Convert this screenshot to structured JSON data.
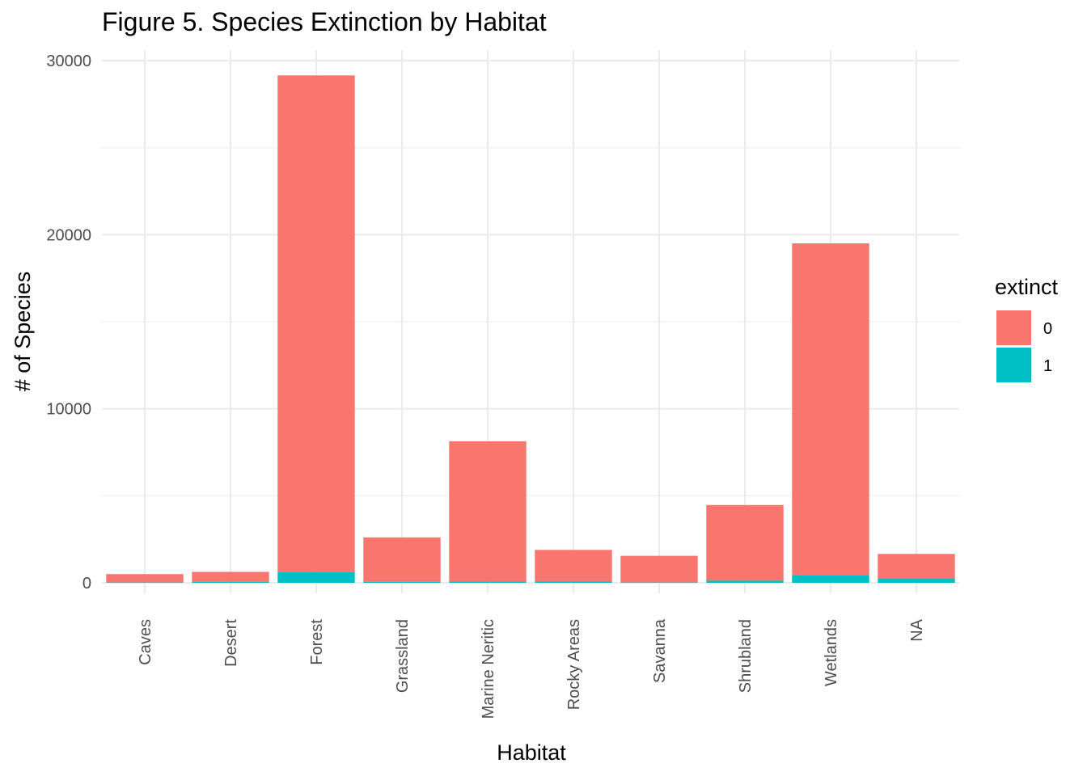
{
  "chart_data": {
    "type": "bar",
    "stacked": true,
    "title": "Figure 5. Species Extinction by Habitat",
    "xlabel": "Habitat",
    "ylabel": "# of Species",
    "categories": [
      "Caves",
      "Desert",
      "Forest",
      "Grassland",
      "Marine Neritic",
      "Rocky Areas",
      "Savanna",
      "Shrubland",
      "Wetlands",
      "NA"
    ],
    "series": [
      {
        "name": "0",
        "color": "#F8766D",
        "values": [
          480,
          580,
          28550,
          2550,
          8050,
          1820,
          1530,
          4350,
          19050,
          1410
        ]
      },
      {
        "name": "1",
        "color": "#00BFC4",
        "values": [
          20,
          50,
          600,
          60,
          80,
          70,
          20,
          120,
          450,
          250
        ]
      }
    ],
    "ylim": [
      0,
      30000
    ],
    "yticks": [
      0,
      10000,
      20000,
      30000
    ],
    "grid": true,
    "legend": {
      "title": "extinct",
      "placement": "right"
    }
  }
}
